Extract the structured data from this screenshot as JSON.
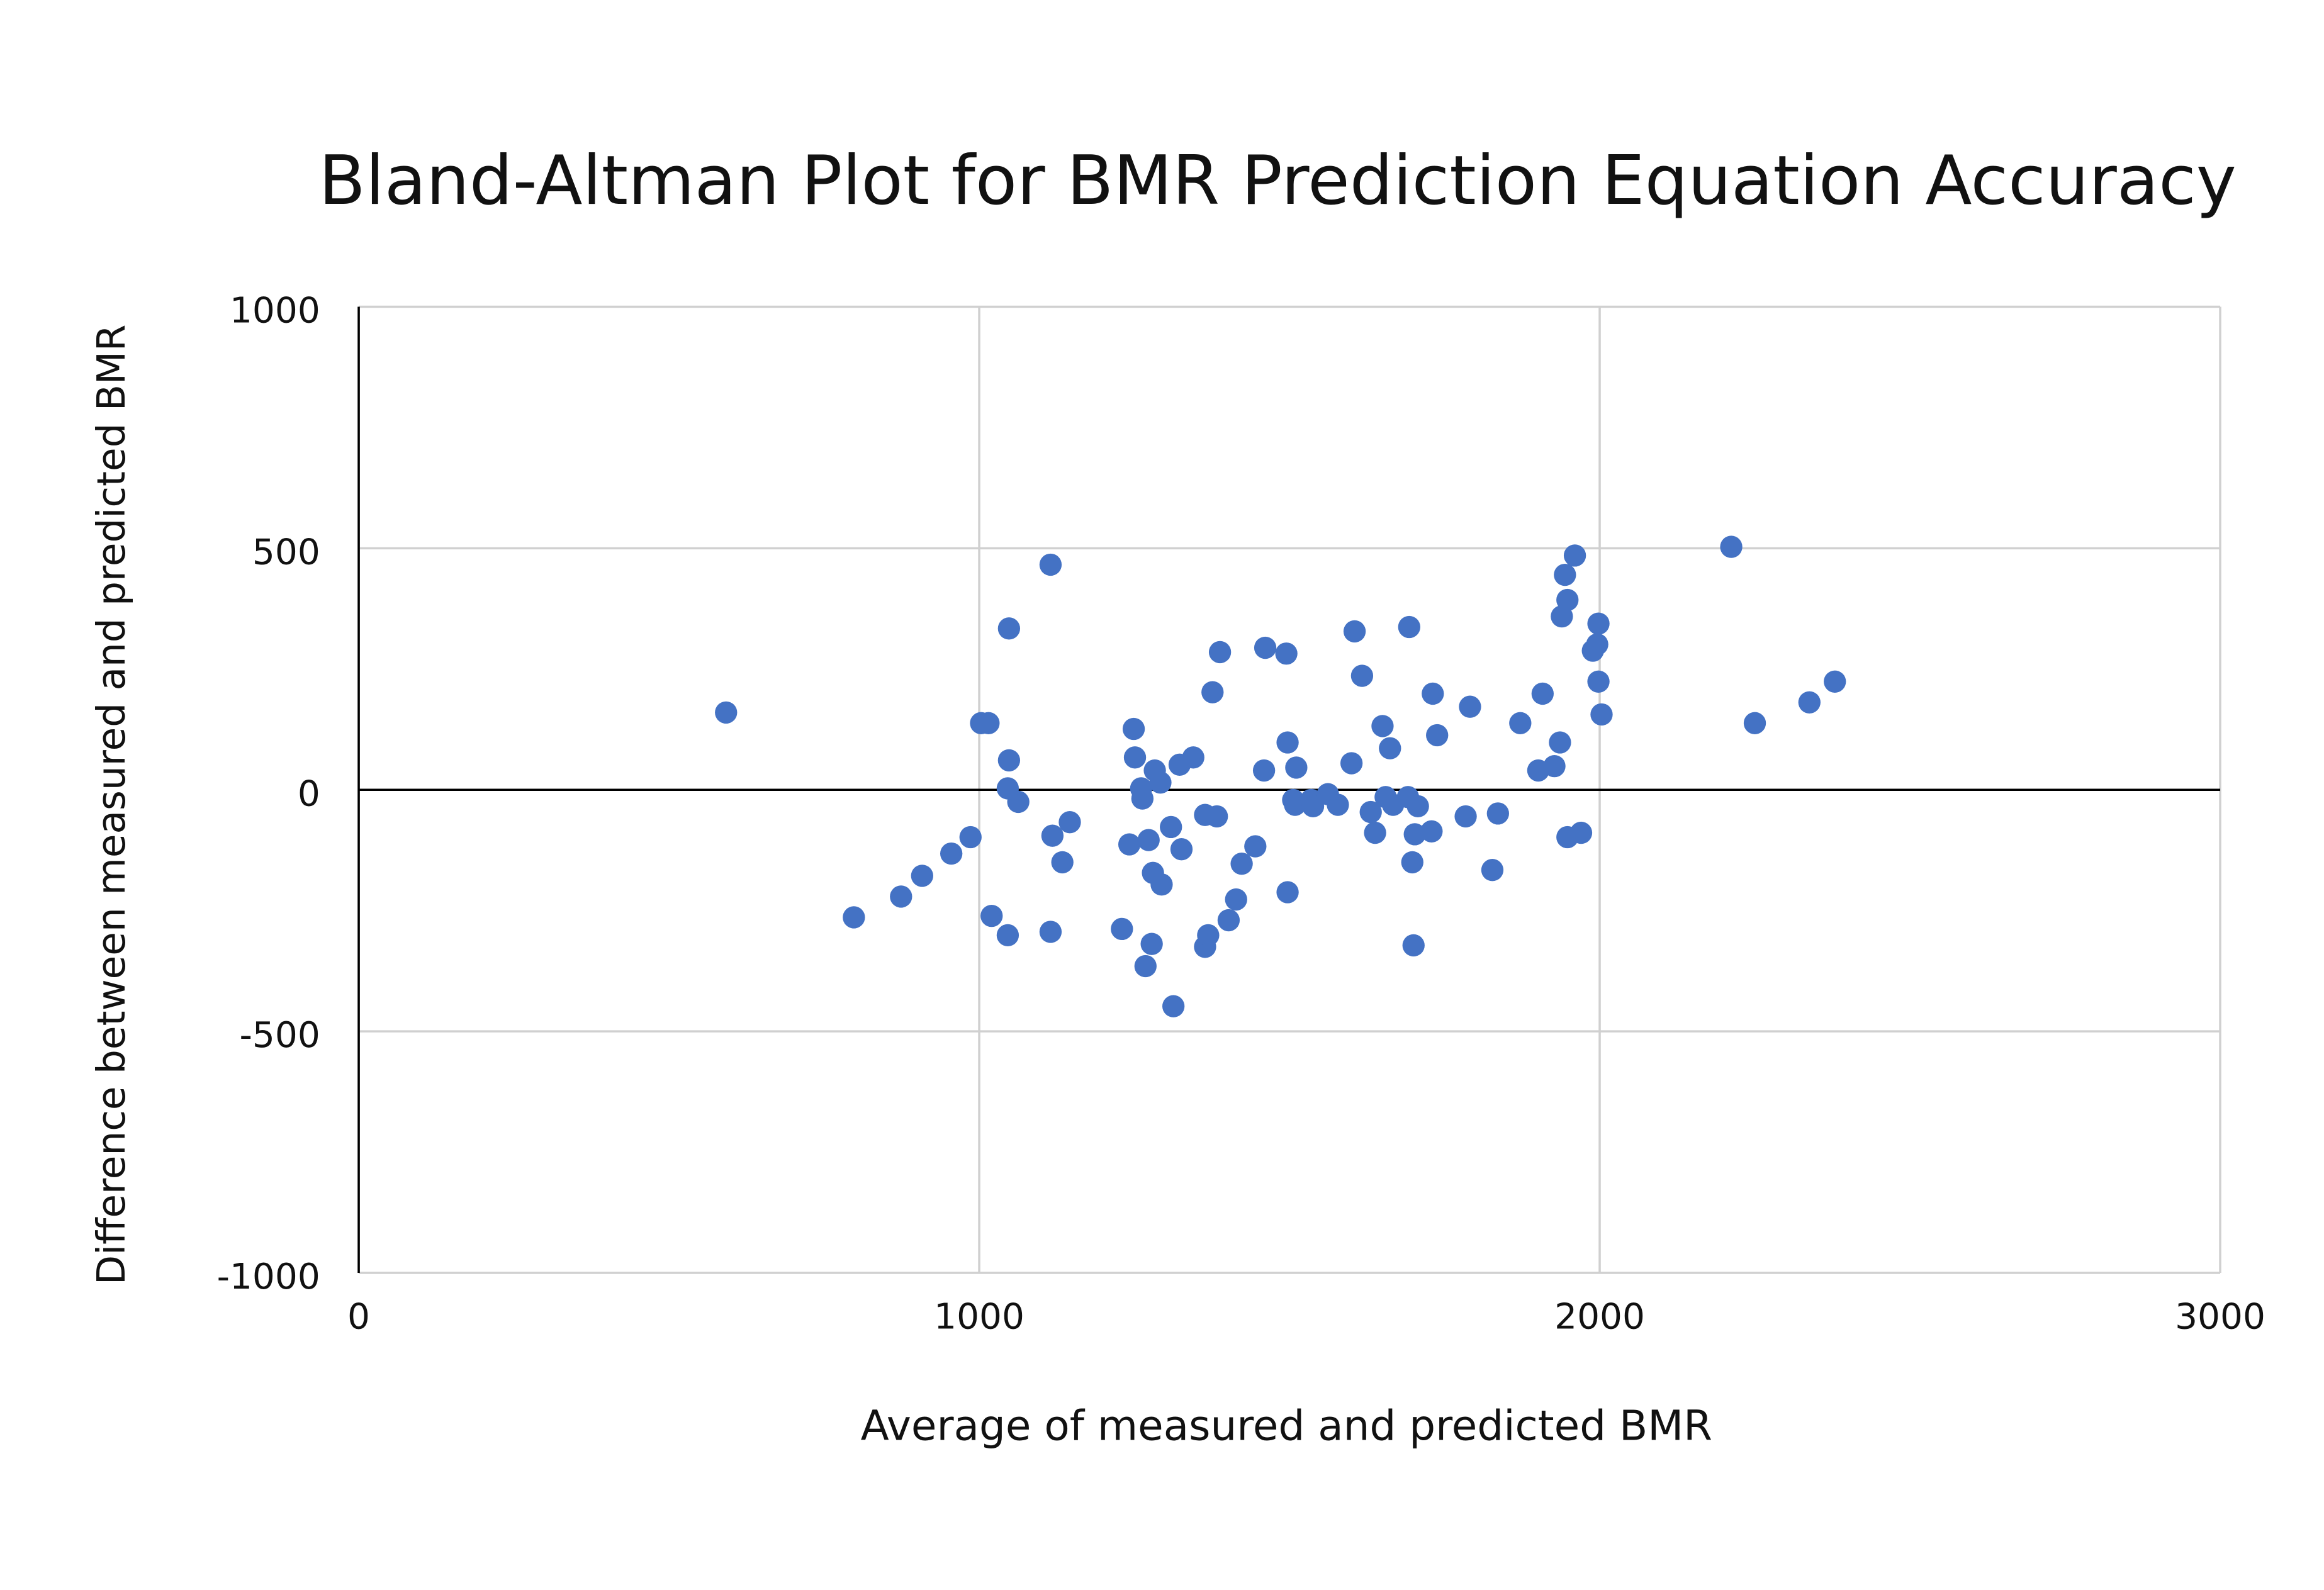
{
  "chart_data": {
    "type": "scatter",
    "title": "Bland-Altman Plot for BMR Prediction Equation Accuracy",
    "x_label": "Average of measured and predicted BMR",
    "y_label": "Difference between measured and predicted BMR",
    "color": "#4472c4",
    "x": [
      592,
      798,
      874,
      908,
      955,
      986,
      1003,
      1015,
      1020,
      1046,
      1046,
      1048,
      1048,
      1063,
      1115,
      1115,
      1118,
      1134,
      1146,
      1230,
      1242,
      1249,
      1251,
      1261,
      1263,
      1268,
      1273,
      1278,
      1280,
      1283,
      1292,
      1294,
      1309,
      1313,
      1323,
      1326,
      1345,
      1364,
      1364,
      1369,
      1376,
      1383,
      1388,
      1402,
      1414,
      1423,
      1445,
      1459,
      1461,
      1495,
      1497,
      1497,
      1506,
      1509,
      1511,
      1535,
      1538,
      1562,
      1578,
      1600,
      1605,
      1617,
      1631,
      1638,
      1650,
      1655,
      1662,
      1667,
      1691,
      1693,
      1698,
      1700,
      1702,
      1707,
      1729,
      1731,
      1738,
      1784,
      1791,
      1827,
      1836,
      1872,
      1901,
      1908,
      1927,
      1936,
      1939,
      1944,
      1948,
      1948,
      1960,
      1970,
      1989,
      1998,
      1996,
      1998,
      2003,
      2212,
      2250,
      2338,
      2379
    ],
    "values": [
      160,
      -264,
      -221,
      -178,
      -132,
      -98,
      138,
      138,
      -261,
      -301,
      3,
      61,
      334,
      -25,
      466,
      -294,
      -95,
      -150,
      -67,
      -288,
      -113,
      126,
      67,
      3,
      -18,
      -365,
      -104,
      -319,
      -172,
      40,
      15,
      -196,
      -77,
      -448,
      52,
      -123,
      67,
      -52,
      -325,
      -301,
      202,
      -55,
      285,
      -270,
      -227,
      -153,
      -117,
      40,
      294,
      282,
      98,
      -212,
      -21,
      -31,
      46,
      -21,
      -34,
      -9,
      -31,
      55,
      328,
      236,
      -46,
      -89,
      132,
      -15,
      86,
      -31,
      -15,
      337,
      -150,
      -322,
      -92,
      -34,
      -86,
      199,
      113,
      -55,
      172,
      -166,
      -49,
      138,
      40,
      199,
      49,
      98,
      359,
      445,
      -98,
      393,
      485,
      -89,
      288,
      344,
      301,
      224,
      156,
      503,
      138,
      181,
      224
    ],
    "xlim": [
      0,
      3000
    ],
    "xticks": [
      0,
      1000,
      2000,
      3000
    ],
    "ylim": [
      -1000,
      1000
    ],
    "yticks": [
      -1000,
      -500,
      0,
      500,
      1000
    ],
    "grid": true
  }
}
